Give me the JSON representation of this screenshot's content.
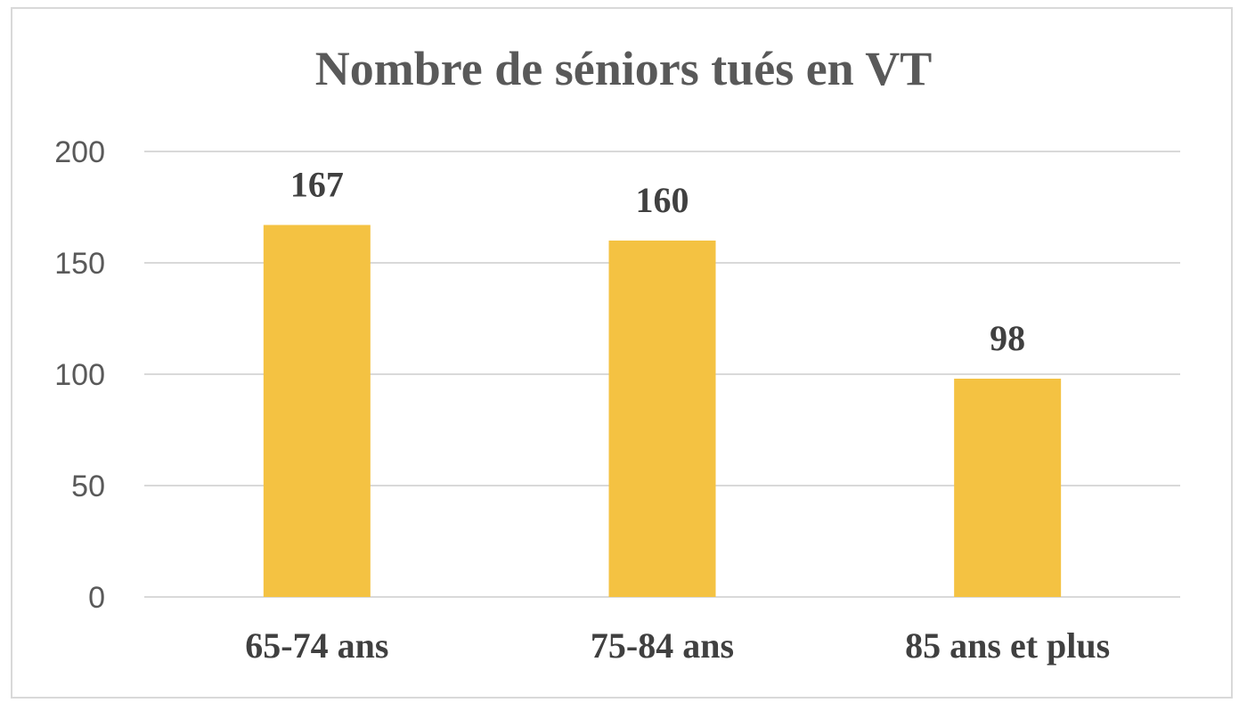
{
  "chart_data": {
    "type": "bar",
    "title": "Nombre de séniors tués en VT",
    "categories": [
      "65-74 ans",
      "75-84 ans",
      "85 ans et plus"
    ],
    "values": [
      167,
      160,
      98
    ],
    "data_labels": [
      "167",
      "160",
      "98"
    ],
    "ylim": [
      0,
      200
    ],
    "yticks": [
      0,
      50,
      100,
      150,
      200
    ],
    "ytick_labels": [
      "0",
      "50",
      "100",
      "150",
      "200"
    ],
    "grid": true,
    "legend": "none",
    "colors": {
      "bar": "#f4c242",
      "grid": "#d9d9d9",
      "title": "#595959",
      "labels": "#404040"
    }
  }
}
